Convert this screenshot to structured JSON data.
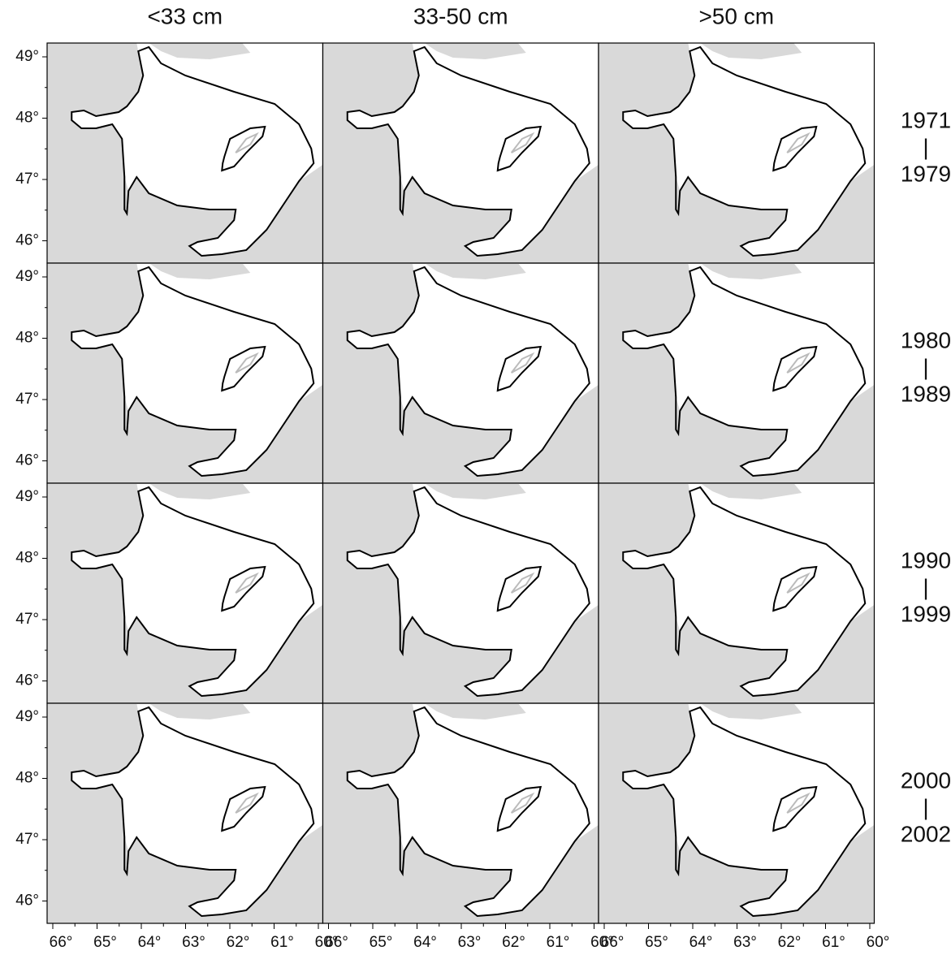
{
  "columns": [
    "<33 cm",
    "33-50 cm",
    ">50 cm"
  ],
  "rows": [
    {
      "label_top": "1971",
      "separator": "|",
      "label_bottom": "1979"
    },
    {
      "label_top": "1980",
      "separator": "|",
      "label_bottom": "1989"
    },
    {
      "label_top": "1990",
      "separator": "|",
      "label_bottom": "1999"
    },
    {
      "label_top": "2000",
      "separator": "|",
      "label_bottom": "2002"
    }
  ],
  "latitude_ticks": [
    "49°",
    "48°",
    "47°",
    "46°"
  ],
  "longitude_ticks": [
    "66°",
    "65°",
    "64°",
    "63°",
    "62°",
    "61°",
    "60°"
  ]
}
